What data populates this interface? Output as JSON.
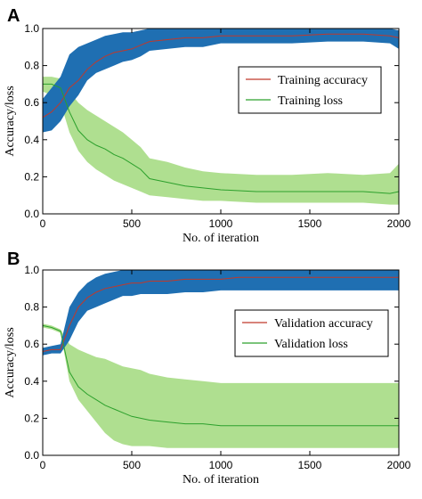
{
  "colors": {
    "band_accuracy": "#1f6fb2",
    "band_loss": "#a6dc84",
    "line_accuracy": "#c0392b",
    "line_loss": "#2ca02c",
    "frame": "#000000"
  },
  "chart_data": [
    {
      "type": "area",
      "panel_label": "A",
      "xlabel": "No. of iteration",
      "ylabel": "Accuracy/loss",
      "xlim": [
        0,
        2000
      ],
      "ylim": [
        0,
        1.0
      ],
      "xticks": [
        "0",
        "500",
        "1000",
        "1500",
        "2000"
      ],
      "yticks": [
        "0.0",
        "0.2",
        "0.4",
        "0.6",
        "0.8",
        "1.0"
      ],
      "legend_position": "center-right",
      "grid": false,
      "series": [
        {
          "name": "Training accuracy",
          "role": "accuracy",
          "x": [
            0,
            50,
            100,
            150,
            200,
            250,
            300,
            350,
            400,
            450,
            500,
            550,
            600,
            700,
            800,
            900,
            1000,
            1200,
            1400,
            1600,
            1800,
            1950,
            2000
          ],
          "y": [
            0.52,
            0.55,
            0.6,
            0.68,
            0.72,
            0.78,
            0.82,
            0.85,
            0.87,
            0.88,
            0.89,
            0.91,
            0.93,
            0.94,
            0.95,
            0.95,
            0.96,
            0.96,
            0.96,
            0.97,
            0.97,
            0.96,
            0.95
          ],
          "lower": [
            0.44,
            0.45,
            0.5,
            0.58,
            0.64,
            0.72,
            0.76,
            0.78,
            0.8,
            0.82,
            0.83,
            0.85,
            0.88,
            0.89,
            0.9,
            0.9,
            0.92,
            0.92,
            0.92,
            0.93,
            0.93,
            0.92,
            0.89
          ],
          "upper": [
            0.62,
            0.68,
            0.74,
            0.86,
            0.9,
            0.92,
            0.94,
            0.96,
            0.97,
            0.98,
            0.98,
            0.99,
            1.0,
            1.0,
            1.0,
            1.0,
            1.0,
            1.0,
            1.0,
            1.0,
            1.0,
            1.0,
            0.99
          ]
        },
        {
          "name": "Training loss",
          "role": "loss",
          "x": [
            0,
            50,
            100,
            150,
            200,
            250,
            300,
            350,
            400,
            450,
            500,
            550,
            600,
            700,
            800,
            900,
            1000,
            1200,
            1400,
            1600,
            1800,
            1950,
            2000
          ],
          "y": [
            0.7,
            0.7,
            0.68,
            0.55,
            0.45,
            0.4,
            0.37,
            0.35,
            0.32,
            0.3,
            0.27,
            0.24,
            0.19,
            0.17,
            0.15,
            0.14,
            0.13,
            0.12,
            0.12,
            0.12,
            0.12,
            0.11,
            0.12
          ],
          "lower": [
            0.66,
            0.64,
            0.6,
            0.44,
            0.34,
            0.28,
            0.24,
            0.21,
            0.18,
            0.16,
            0.14,
            0.12,
            0.1,
            0.09,
            0.08,
            0.07,
            0.07,
            0.06,
            0.06,
            0.06,
            0.06,
            0.05,
            0.05
          ],
          "upper": [
            0.74,
            0.74,
            0.73,
            0.66,
            0.6,
            0.56,
            0.53,
            0.5,
            0.47,
            0.44,
            0.4,
            0.36,
            0.3,
            0.28,
            0.25,
            0.23,
            0.22,
            0.21,
            0.21,
            0.22,
            0.21,
            0.22,
            0.27
          ]
        }
      ]
    },
    {
      "type": "area",
      "panel_label": "B",
      "xlabel": "No. of iteration",
      "ylabel": "Accuracy/loss",
      "xlim": [
        0,
        2000
      ],
      "ylim": [
        0,
        1.0
      ],
      "xticks": [
        "0",
        "500",
        "1000",
        "1500",
        "2000"
      ],
      "yticks": [
        "0.0",
        "0.2",
        "0.4",
        "0.6",
        "0.8",
        "1.0"
      ],
      "legend_position": "center-right",
      "grid": false,
      "series": [
        {
          "name": "Validation accuracy",
          "role": "accuracy",
          "x": [
            0,
            50,
            100,
            150,
            200,
            250,
            300,
            350,
            400,
            450,
            500,
            550,
            600,
            700,
            800,
            900,
            1000,
            1100,
            1200,
            1400,
            1600,
            1800,
            2000
          ],
          "y": [
            0.56,
            0.57,
            0.57,
            0.7,
            0.8,
            0.85,
            0.88,
            0.9,
            0.91,
            0.92,
            0.93,
            0.93,
            0.94,
            0.94,
            0.95,
            0.95,
            0.95,
            0.96,
            0.96,
            0.96,
            0.96,
            0.96,
            0.96
          ],
          "lower": [
            0.54,
            0.55,
            0.55,
            0.62,
            0.72,
            0.78,
            0.8,
            0.82,
            0.84,
            0.86,
            0.86,
            0.87,
            0.87,
            0.87,
            0.88,
            0.88,
            0.89,
            0.89,
            0.89,
            0.89,
            0.89,
            0.89,
            0.89
          ],
          "upper": [
            0.58,
            0.59,
            0.6,
            0.8,
            0.88,
            0.93,
            0.96,
            0.98,
            0.99,
            1.0,
            1.0,
            1.0,
            1.0,
            1.0,
            1.0,
            1.0,
            1.0,
            1.0,
            1.0,
            1.0,
            1.0,
            1.0,
            1.0
          ]
        },
        {
          "name": "Validation loss",
          "role": "loss",
          "x": [
            0,
            50,
            100,
            150,
            200,
            250,
            300,
            350,
            400,
            450,
            500,
            550,
            600,
            700,
            800,
            900,
            1000,
            1100,
            1200,
            1400,
            1600,
            1800,
            2000
          ],
          "y": [
            0.7,
            0.69,
            0.67,
            0.45,
            0.37,
            0.33,
            0.3,
            0.27,
            0.25,
            0.23,
            0.21,
            0.2,
            0.19,
            0.18,
            0.17,
            0.17,
            0.16,
            0.16,
            0.16,
            0.16,
            0.16,
            0.16,
            0.16
          ],
          "lower": [
            0.69,
            0.68,
            0.66,
            0.4,
            0.3,
            0.24,
            0.18,
            0.12,
            0.08,
            0.06,
            0.05,
            0.05,
            0.05,
            0.04,
            0.04,
            0.04,
            0.04,
            0.04,
            0.04,
            0.04,
            0.04,
            0.04,
            0.04
          ],
          "upper": [
            0.71,
            0.7,
            0.68,
            0.6,
            0.57,
            0.55,
            0.53,
            0.52,
            0.5,
            0.48,
            0.47,
            0.46,
            0.44,
            0.42,
            0.41,
            0.4,
            0.39,
            0.39,
            0.39,
            0.39,
            0.39,
            0.39,
            0.39
          ]
        }
      ]
    }
  ]
}
